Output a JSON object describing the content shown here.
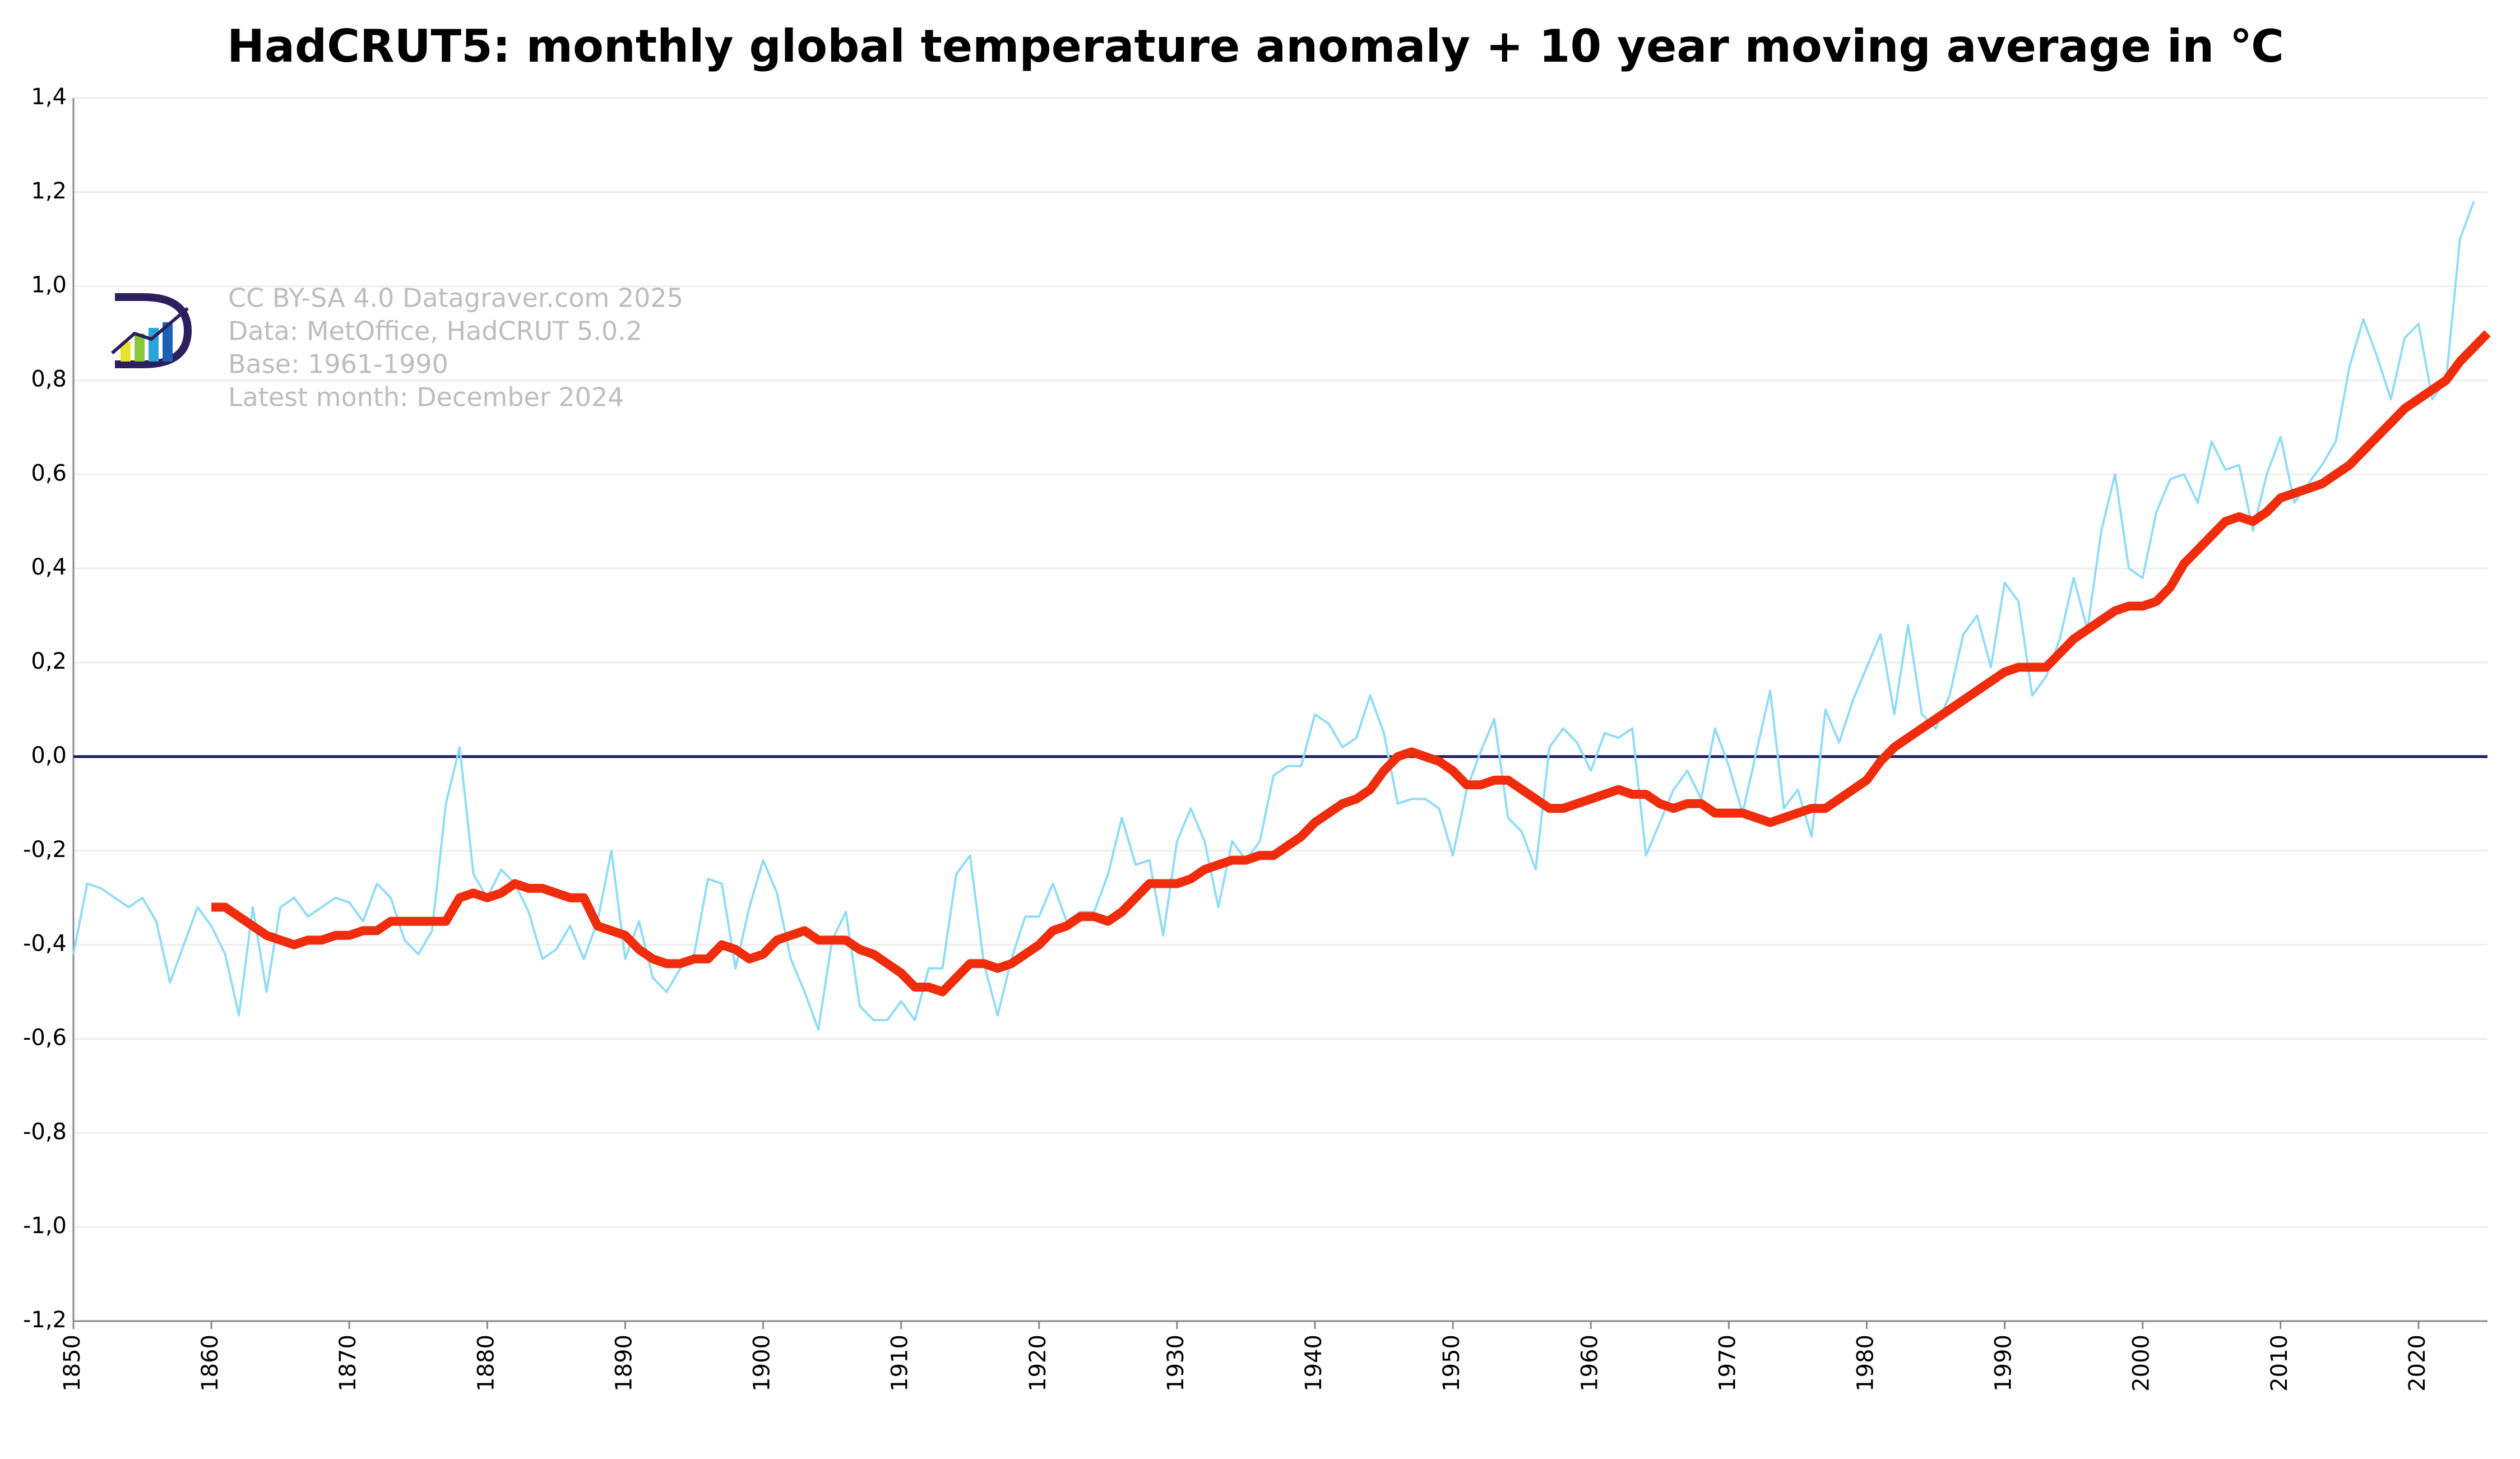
{
  "chart_data": {
    "type": "line",
    "title": "HadCRUT5: monthly global temperature anomaly + 10 year moving average in ℃",
    "notes": [
      "CC BY-SA 4.0 Datagraver.com 2025",
      "Data: MetOffice, HadCRUT 5.0.2",
      "Base: 1961-1990",
      "Latest month: December 2024"
    ],
    "xlim": [
      1850,
      2025
    ],
    "xticks": [
      1850,
      1860,
      1870,
      1880,
      1890,
      1900,
      1910,
      1920,
      1930,
      1940,
      1950,
      1960,
      1970,
      1980,
      1990,
      2000,
      2010,
      2020
    ],
    "ylim": [
      -1.2,
      1.4
    ],
    "yticks": [
      {
        "value": -1.2,
        "label": "-1,2"
      },
      {
        "value": -1.0,
        "label": "-1,0"
      },
      {
        "value": -0.8,
        "label": "-0,8"
      },
      {
        "value": -0.6,
        "label": "-0,6"
      },
      {
        "value": -0.4,
        "label": "-0,4"
      },
      {
        "value": -0.2,
        "label": "-0,2"
      },
      {
        "value": 0,
        "label": "0,0"
      },
      {
        "value": 0.2,
        "label": "0,2"
      },
      {
        "value": 0.4,
        "label": "0,4"
      },
      {
        "value": 0.6,
        "label": "0,6"
      },
      {
        "value": 0.8,
        "label": "0,8"
      },
      {
        "value": 1.0,
        "label": "1,0"
      },
      {
        "value": 1.2,
        "label": "1,2"
      },
      {
        "value": 1.4,
        "label": "1,4"
      }
    ],
    "grid": true,
    "zero_line_color": "#1a1f5e",
    "series": [
      {
        "color": "#8fdcf7",
        "width": 4,
        "x": [
          1850,
          1851,
          1852,
          1853,
          1854,
          1855,
          1856,
          1857,
          1858,
          1859,
          1860,
          1861,
          1862,
          1863,
          1864,
          1865,
          1866,
          1867,
          1868,
          1869,
          1870,
          1871,
          1872,
          1873,
          1874,
          1875,
          1876,
          1877,
          1878,
          1879,
          1880,
          1881,
          1882,
          1883,
          1884,
          1885,
          1886,
          1887,
          1888,
          1889,
          1890,
          1891,
          1892,
          1893,
          1894,
          1895,
          1896,
          1897,
          1898,
          1899,
          1900,
          1901,
          1902,
          1903,
          1904,
          1905,
          1906,
          1907,
          1908,
          1909,
          1910,
          1911,
          1912,
          1913,
          1914,
          1915,
          1916,
          1917,
          1918,
          1919,
          1920,
          1921,
          1922,
          1923,
          1924,
          1925,
          1926,
          1927,
          1928,
          1929,
          1930,
          1931,
          1932,
          1933,
          1934,
          1935,
          1936,
          1937,
          1938,
          1939,
          1940,
          1941,
          1942,
          1943,
          1944,
          1945,
          1946,
          1947,
          1948,
          1949,
          1950,
          1951,
          1952,
          1953,
          1954,
          1955,
          1956,
          1957,
          1958,
          1959,
          1960,
          1961,
          1962,
          1963,
          1964,
          1965,
          1966,
          1967,
          1968,
          1969,
          1970,
          1971,
          1972,
          1973,
          1974,
          1975,
          1976,
          1977,
          1978,
          1979,
          1980,
          1981,
          1982,
          1983,
          1984,
          1985,
          1986,
          1987,
          1988,
          1989,
          1990,
          1991,
          1992,
          1993,
          1994,
          1995,
          1996,
          1997,
          1998,
          1999,
          2000,
          2001,
          2002,
          2003,
          2004,
          2005,
          2006,
          2007,
          2008,
          2009,
          2010,
          2011,
          2012,
          2013,
          2014,
          2015,
          2016,
          2017,
          2018,
          2019,
          2020,
          2021,
          2022,
          2023,
          2024
        ],
        "values": [
          -0.42,
          -0.27,
          -0.28,
          -0.3,
          -0.32,
          -0.3,
          -0.35,
          -0.48,
          -0.4,
          -0.32,
          -0.36,
          -0.42,
          -0.55,
          -0.32,
          -0.5,
          -0.32,
          -0.3,
          -0.34,
          -0.32,
          -0.3,
          -0.31,
          -0.35,
          -0.27,
          -0.3,
          -0.39,
          -0.42,
          -0.37,
          -0.1,
          0.02,
          -0.25,
          -0.3,
          -0.24,
          -0.27,
          -0.33,
          -0.43,
          -0.41,
          -0.36,
          -0.43,
          -0.35,
          -0.2,
          -0.43,
          -0.35,
          -0.47,
          -0.5,
          -0.45,
          -0.42,
          -0.26,
          -0.27,
          -0.45,
          -0.32,
          -0.22,
          -0.29,
          -0.43,
          -0.5,
          -0.58,
          -0.39,
          -0.33,
          -0.53,
          -0.56,
          -0.56,
          -0.52,
          -0.56,
          -0.45,
          -0.45,
          -0.25,
          -0.21,
          -0.44,
          -0.55,
          -0.43,
          -0.34,
          -0.34,
          -0.27,
          -0.35,
          -0.33,
          -0.33,
          -0.25,
          -0.13,
          -0.23,
          -0.22,
          -0.38,
          -0.18,
          -0.11,
          -0.18,
          -0.32,
          -0.18,
          -0.22,
          -0.18,
          -0.04,
          -0.02,
          -0.02,
          0.09,
          0.07,
          0.02,
          0.04,
          0.13,
          0.05,
          -0.1,
          -0.09,
          -0.09,
          -0.11,
          -0.21,
          -0.07,
          0.01,
          0.08,
          -0.13,
          -0.16,
          -0.24,
          0.02,
          0.06,
          0.03,
          -0.03,
          0.05,
          0.04,
          0.06,
          -0.21,
          -0.14,
          -0.07,
          -0.03,
          -0.09,
          0.06,
          -0.02,
          -0.12,
          0.01,
          0.14,
          -0.11,
          -0.07,
          -0.17,
          0.1,
          0.03,
          0.12,
          0.19,
          0.26,
          0.09,
          0.28,
          0.09,
          0.06,
          0.13,
          0.26,
          0.3,
          0.19,
          0.37,
          0.33,
          0.13,
          0.17,
          0.25,
          0.38,
          0.27,
          0.48,
          0.6,
          0.4,
          0.38,
          0.52,
          0.59,
          0.6,
          0.54,
          0.67,
          0.61,
          0.62,
          0.48,
          0.6,
          0.68,
          0.54,
          0.58,
          0.62,
          0.67,
          0.83,
          0.93,
          0.85,
          0.76,
          0.89,
          0.92,
          0.76,
          0.8,
          1.1,
          1.18
        ]
      },
      {
        "color": "#ef2c0c",
        "width": 16,
        "x": [
          1860,
          1861,
          1862,
          1863,
          1864,
          1865,
          1866,
          1867,
          1868,
          1869,
          1870,
          1871,
          1872,
          1873,
          1874,
          1875,
          1876,
          1877,
          1878,
          1879,
          1880,
          1881,
          1882,
          1883,
          1884,
          1885,
          1886,
          1887,
          1888,
          1889,
          1890,
          1891,
          1892,
          1893,
          1894,
          1895,
          1896,
          1897,
          1898,
          1899,
          1900,
          1901,
          1902,
          1903,
          1904,
          1905,
          1906,
          1907,
          1908,
          1909,
          1910,
          1911,
          1912,
          1913,
          1914,
          1915,
          1916,
          1917,
          1918,
          1919,
          1920,
          1921,
          1922,
          1923,
          1924,
          1925,
          1926,
          1927,
          1928,
          1929,
          1930,
          1931,
          1932,
          1933,
          1934,
          1935,
          1936,
          1937,
          1938,
          1939,
          1940,
          1941,
          1942,
          1943,
          1944,
          1945,
          1946,
          1947,
          1948,
          1949,
          1950,
          1951,
          1952,
          1953,
          1954,
          1955,
          1956,
          1957,
          1958,
          1959,
          1960,
          1961,
          1962,
          1963,
          1964,
          1965,
          1966,
          1967,
          1968,
          1969,
          1970,
          1971,
          1972,
          1973,
          1974,
          1975,
          1976,
          1977,
          1978,
          1979,
          1980,
          1981,
          1982,
          1983,
          1984,
          1985,
          1986,
          1987,
          1988,
          1989,
          1990,
          1991,
          1992,
          1993,
          1994,
          1995,
          1996,
          1997,
          1998,
          1999,
          2000,
          2001,
          2002,
          2003,
          2004,
          2005,
          2006,
          2007,
          2008,
          2009,
          2010,
          2011,
          2012,
          2013,
          2014,
          2015,
          2016,
          2017,
          2018,
          2019,
          2020,
          2021,
          2022,
          2023,
          2025
        ],
        "values": [
          -0.32,
          -0.32,
          -0.34,
          -0.36,
          -0.38,
          -0.39,
          -0.4,
          -0.39,
          -0.39,
          -0.38,
          -0.38,
          -0.37,
          -0.37,
          -0.35,
          -0.35,
          -0.35,
          -0.35,
          -0.35,
          -0.3,
          -0.29,
          -0.3,
          -0.29,
          -0.27,
          -0.28,
          -0.28,
          -0.29,
          -0.3,
          -0.3,
          -0.36,
          -0.37,
          -0.38,
          -0.41,
          -0.43,
          -0.44,
          -0.44,
          -0.43,
          -0.43,
          -0.4,
          -0.41,
          -0.43,
          -0.42,
          -0.39,
          -0.38,
          -0.37,
          -0.39,
          -0.39,
          -0.39,
          -0.41,
          -0.42,
          -0.44,
          -0.46,
          -0.49,
          -0.49,
          -0.5,
          -0.47,
          -0.44,
          -0.44,
          -0.45,
          -0.44,
          -0.42,
          -0.4,
          -0.37,
          -0.36,
          -0.34,
          -0.34,
          -0.35,
          -0.33,
          -0.3,
          -0.27,
          -0.27,
          -0.27,
          -0.26,
          -0.24,
          -0.23,
          -0.22,
          -0.22,
          -0.21,
          -0.21,
          -0.19,
          -0.17,
          -0.14,
          -0.12,
          -0.1,
          -0.09,
          -0.07,
          -0.03,
          0.0,
          0.01,
          0.0,
          -0.01,
          -0.03,
          -0.06,
          -0.06,
          -0.05,
          -0.05,
          -0.07,
          -0.09,
          -0.11,
          -0.11,
          -0.1,
          -0.09,
          -0.08,
          -0.07,
          -0.08,
          -0.08,
          -0.1,
          -0.11,
          -0.1,
          -0.1,
          -0.12,
          -0.12,
          -0.12,
          -0.13,
          -0.14,
          -0.13,
          -0.12,
          -0.11,
          -0.11,
          -0.09,
          -0.07,
          -0.05,
          -0.01,
          0.02,
          0.04,
          0.06,
          0.08,
          0.1,
          0.12,
          0.14,
          0.16,
          0.18,
          0.19,
          0.19,
          0.19,
          0.22,
          0.25,
          0.27,
          0.29,
          0.31,
          0.32,
          0.32,
          0.33,
          0.36,
          0.41,
          0.44,
          0.47,
          0.5,
          0.51,
          0.5,
          0.52,
          0.55,
          0.56,
          0.57,
          0.58,
          0.6,
          0.62,
          0.65,
          0.68,
          0.71,
          0.74,
          0.76,
          0.78,
          0.8,
          0.84,
          0.9
        ]
      }
    ]
  }
}
